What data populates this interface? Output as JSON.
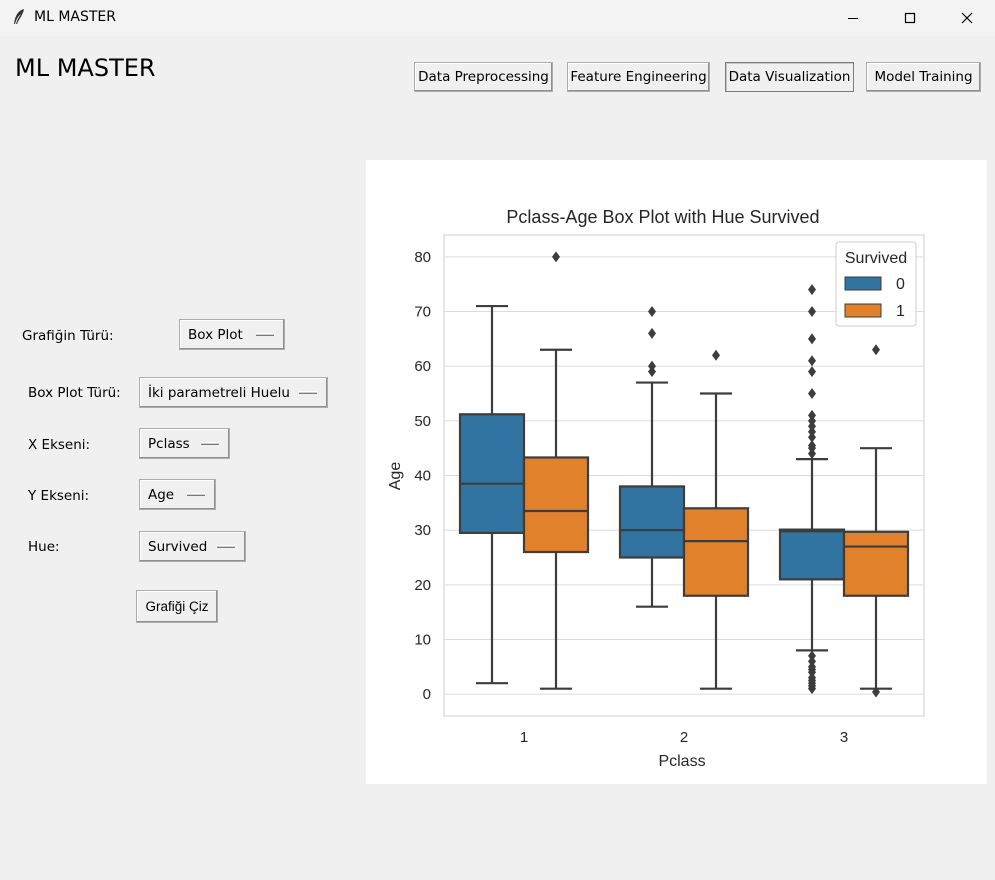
{
  "window": {
    "title": "ML MASTER"
  },
  "app": {
    "heading": "ML MASTER"
  },
  "nav": {
    "preprocessing": "Data Preprocessing",
    "feature_engineering": "Feature Engineering",
    "visualization": "Data Visualization",
    "training": "Model Training"
  },
  "form": {
    "chart_type_label": "Grafiğin Türü:",
    "chart_type_value": "Box Plot",
    "boxplot_type_label": "Box Plot Türü:",
    "boxplot_type_value": "İki parametreli Huelu",
    "x_label": "X Ekseni:",
    "x_value": "Pclass",
    "y_label": "Y Ekseni:",
    "y_value": "Age",
    "hue_label": "Hue:",
    "hue_value": "Survived",
    "draw_button": "Grafiği Çiz"
  },
  "colors": {
    "series0": "#3274a1",
    "series1": "#e1812c",
    "median": "#3d3d3d"
  },
  "chart_data": {
    "type": "box",
    "title": "Pclass-Age Box Plot with Hue Survived",
    "xlabel": "Pclass",
    "ylabel": "Age",
    "categories": [
      "1",
      "2",
      "3"
    ],
    "ylim": [
      -4,
      84
    ],
    "yticks": [
      0,
      10,
      20,
      30,
      40,
      50,
      60,
      70,
      80
    ],
    "grid": true,
    "legend": {
      "title": "Survived",
      "position": "top-right",
      "entries": [
        "0",
        "1"
      ]
    },
    "series": [
      {
        "name": "0",
        "color": "#3274a1",
        "boxes": [
          {
            "category": "1",
            "whisker_low": 2,
            "q1": 29.5,
            "median": 38.5,
            "q3": 51.2,
            "whisker_high": 71,
            "outliers": []
          },
          {
            "category": "2",
            "whisker_low": 16,
            "q1": 25,
            "median": 30,
            "q3": 38,
            "whisker_high": 57,
            "outliers": [
              59,
              60,
              66,
              70
            ]
          },
          {
            "category": "3",
            "whisker_low": 8,
            "q1": 21,
            "median": 29.8,
            "q3": 30.1,
            "whisker_high": 43,
            "outliers": [
              1,
              1.5,
              2,
              2.5,
              3,
              4,
              4.5,
              5,
              6,
              7,
              44,
              45,
              45.5,
              47,
              48,
              49,
              50,
              51,
              55,
              59,
              61,
              65,
              70,
              74
            ]
          }
        ]
      },
      {
        "name": "1",
        "color": "#e1812c",
        "boxes": [
          {
            "category": "1",
            "whisker_low": 1,
            "q1": 26,
            "median": 33.5,
            "q3": 43.3,
            "whisker_high": 63,
            "outliers": [
              80
            ]
          },
          {
            "category": "2",
            "whisker_low": 1,
            "q1": 18,
            "median": 28,
            "q3": 34,
            "whisker_high": 55,
            "outliers": [
              62
            ]
          },
          {
            "category": "3",
            "whisker_low": 1,
            "q1": 18,
            "median": 27,
            "q3": 29.7,
            "whisker_high": 45,
            "outliers": [
              0.4,
              63
            ]
          }
        ]
      }
    ]
  }
}
